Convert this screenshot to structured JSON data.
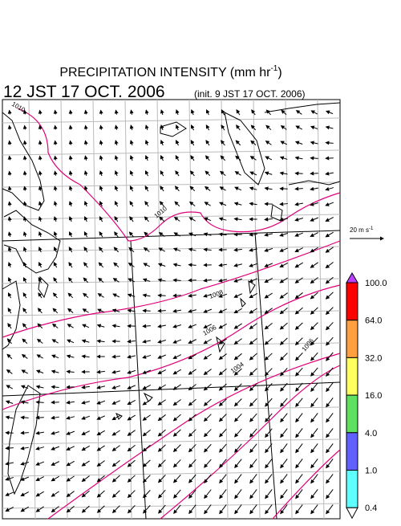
{
  "header": {
    "title": "PRECIPITATION INTENSITY (mm hr",
    "title_exp": "-1",
    "title_end": ")",
    "valid_time": "12 JST 17 OCT. 2006",
    "init_time": "(init. 9 JST 17 OCT. 2006)"
  },
  "vector_legend": {
    "label": "20 m s",
    "exp": "-1"
  },
  "contour_labels": [
    "1010",
    "1010",
    "1008",
    "1006",
    "1004",
    "1006"
  ],
  "colorbar": {
    "levels": [
      "100.0",
      "64.0",
      "32.0",
      "16.0",
      "4.0",
      "1.0",
      "0.4"
    ],
    "colors": [
      "#ff0000",
      "#ffa040",
      "#ffff60",
      "#60e060",
      "#6060ff",
      "#60ffff"
    ],
    "over_color": "#c040ff",
    "under_color": "#ffffff"
  }
}
